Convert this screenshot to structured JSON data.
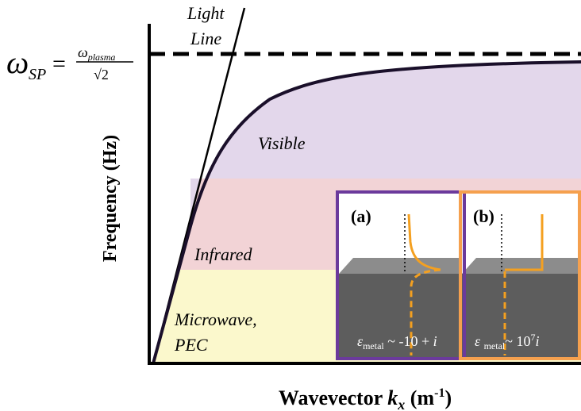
{
  "formula": {
    "omega": "ω",
    "sp": "SP",
    "equals": "=",
    "numerator": "ω",
    "numerator_sub": "plasma",
    "denominator": "√2"
  },
  "light_line": {
    "line1": "Light",
    "line2": "Line"
  },
  "regions": {
    "visible": "Visible",
    "infrared": "Infrared",
    "microwave": [
      "Microwave,",
      "PEC"
    ]
  },
  "y_axis_label": "Frequency (Hz)",
  "x_axis_label": {
    "text": "Wavevector",
    "k": "k",
    "sub": "x",
    "unit": "(m",
    "sup": "-1",
    "close": ")"
  },
  "insets": [
    {
      "label": "(a)",
      "epsilon": "ε",
      "sub": "metal",
      "expr": " ~ -10 + ",
      "i": "i"
    },
    {
      "label": "(b)",
      "epsilon": "ε",
      "sub": "metal",
      "expr": "~ 10",
      "sup": "7",
      "i": "i"
    }
  ]
}
